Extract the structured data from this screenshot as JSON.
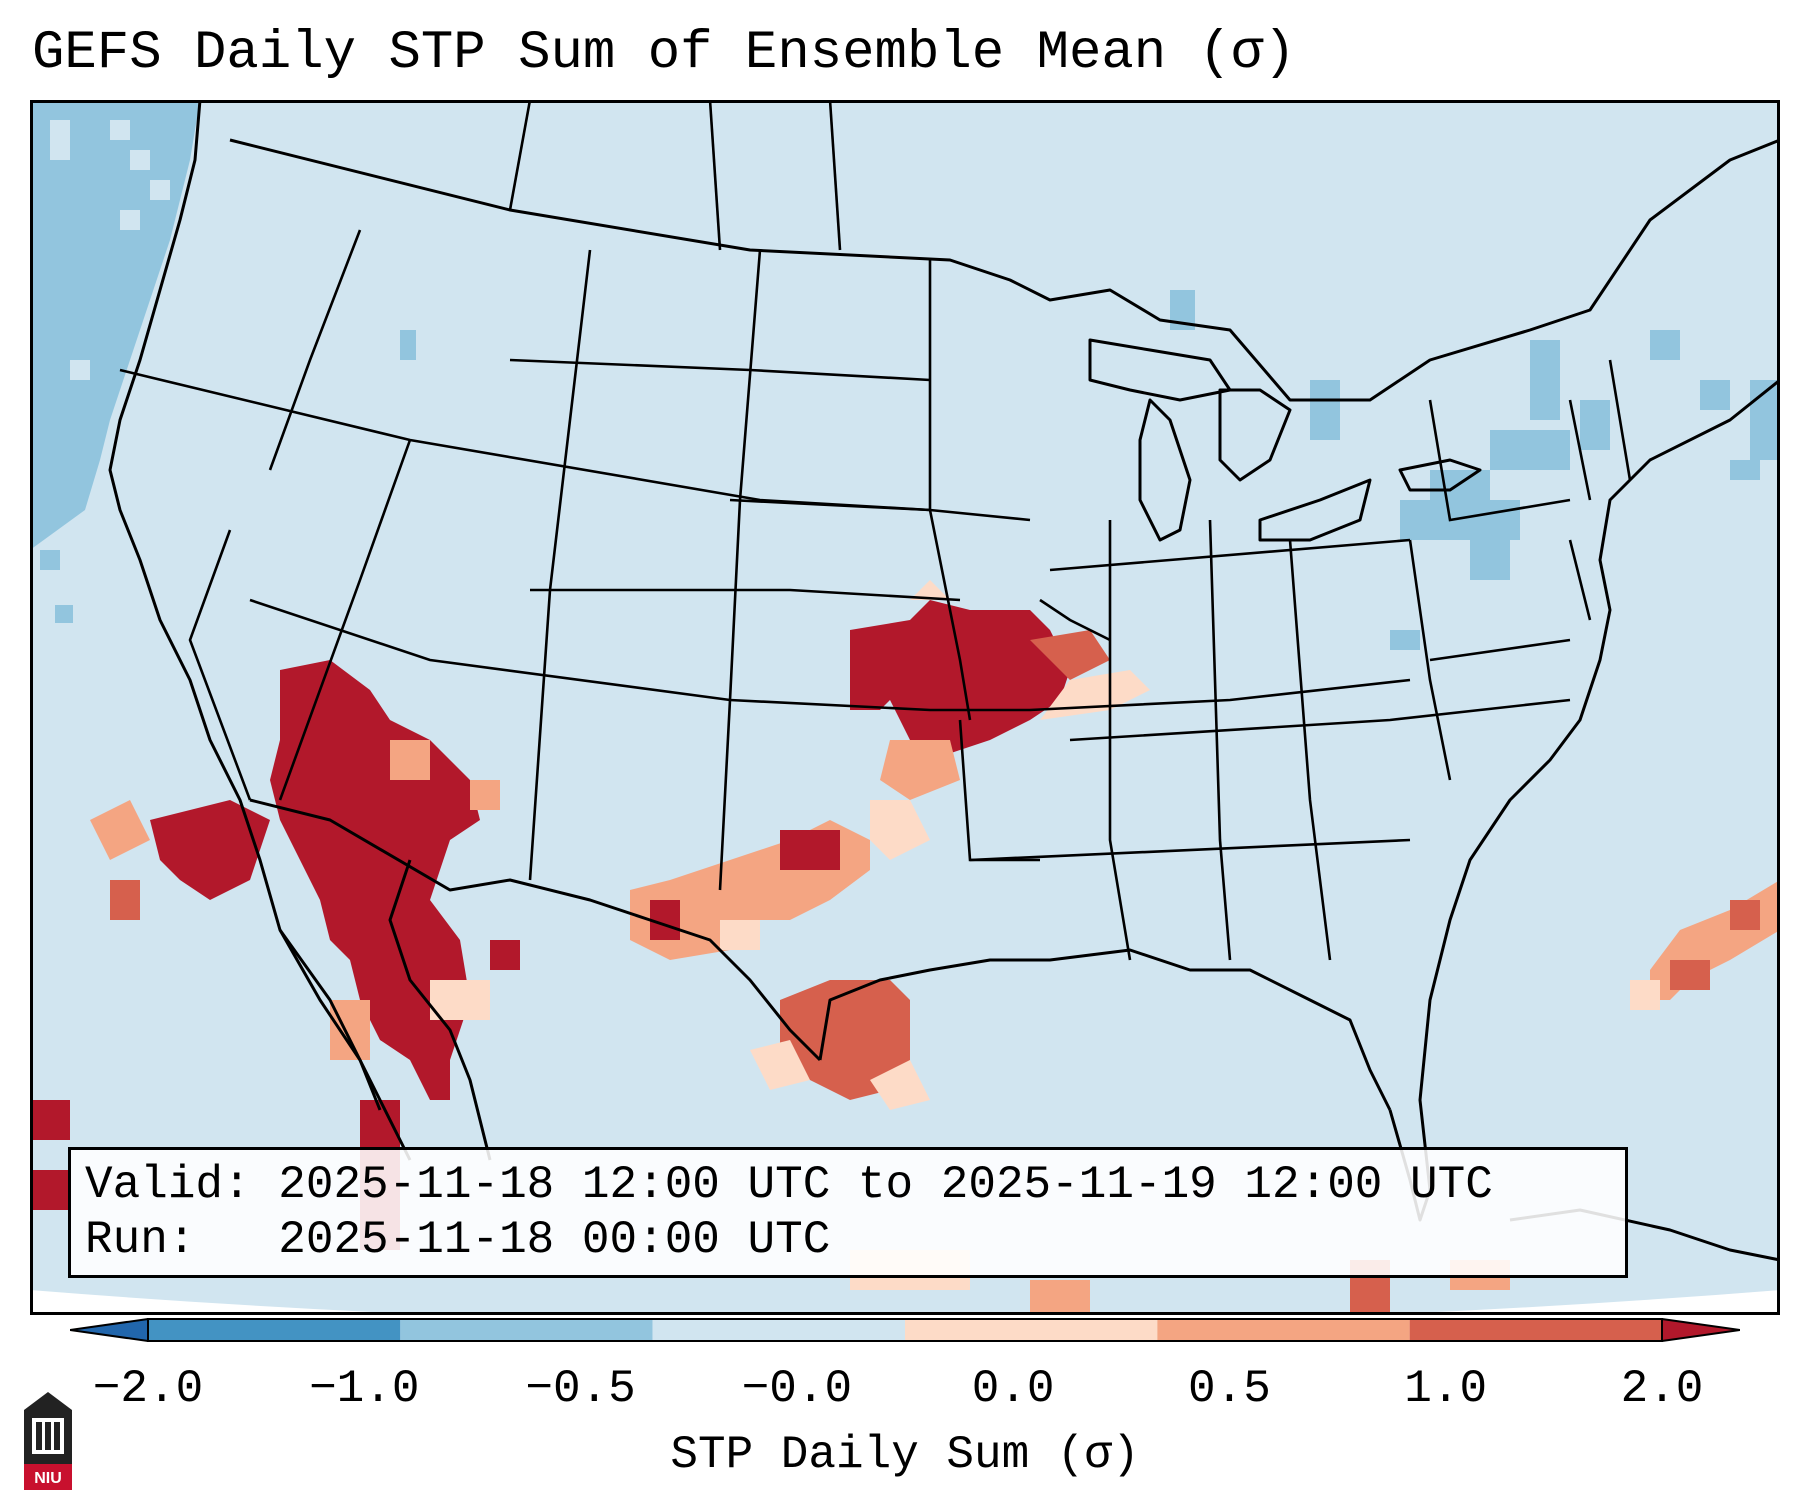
{
  "title": "GEFS Daily STP Sum of Ensemble Mean (σ)",
  "info": {
    "valid": "Valid: 2025-11-18 12:00 UTC to 2025-11-19 12:00 UTC",
    "run": "Run:   2025-11-18 00:00 UTC"
  },
  "colorbar": {
    "label": "STP Daily Sum (σ)",
    "ticks": [
      "−2.0",
      "−1.0",
      "−0.5",
      "−0.0",
      "0.0",
      "0.5",
      "1.0",
      "2.0"
    ],
    "colors": [
      "#2166ac",
      "#4393c3",
      "#92c5de",
      "#d1e5f0",
      "#fddbc7",
      "#f4a582",
      "#d6604d",
      "#b2182b"
    ]
  },
  "map": {
    "background_color": "#d1e5f0",
    "region": "Contiguous United States"
  },
  "logo": {
    "text": "NIU",
    "color": "#c8102e"
  }
}
